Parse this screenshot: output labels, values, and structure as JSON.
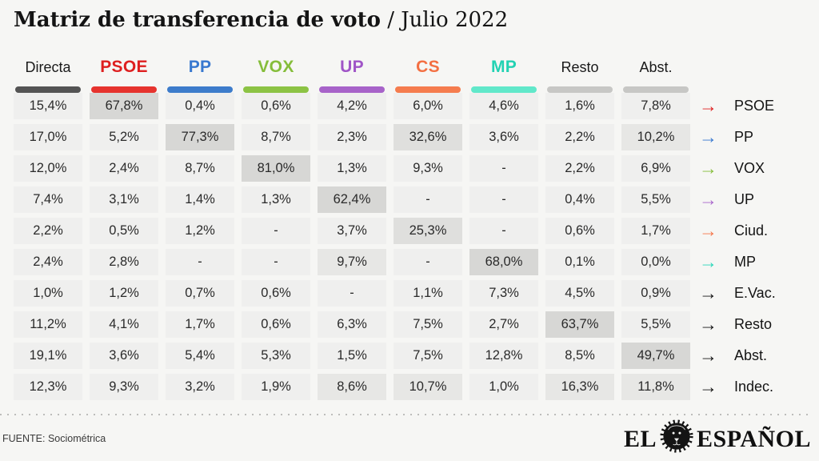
{
  "title": {
    "bold": "Matriz de transferencia de voto",
    "regular": " / Julio 2022"
  },
  "legend": {
    "arrow_glyph": "→"
  },
  "highlight_palette": {
    "0": "#efefee",
    "1": "#e7e7e5",
    "2": "#dfdfdd",
    "3": "#d7d7d5"
  },
  "chart_data": {
    "type": "table",
    "title": "Matriz de transferencia de voto / Julio 2022",
    "legend_position": "right",
    "note": "Vote transfer matrix; rows = current choice (right arrows), columns = party voted; values are percentages, dash = no data",
    "columns": [
      {
        "label": "Directa",
        "color": "#545454",
        "label_color": "#1a1a1a",
        "bold": false
      },
      {
        "label": "PSOE",
        "color": "#e6332e",
        "label_color": "#de1f1f",
        "bold": true
      },
      {
        "label": "PP",
        "color": "#3d7ccb",
        "label_color": "#3878cf",
        "bold": true
      },
      {
        "label": "VOX",
        "color": "#8cc344",
        "label_color": "#85bd3a",
        "bold": true
      },
      {
        "label": "UP",
        "color": "#a763c9",
        "label_color": "#a055c7",
        "bold": true
      },
      {
        "label": "CS",
        "color": "#f57c4e",
        "label_color": "#f36f42",
        "bold": true
      },
      {
        "label": "MP",
        "color": "#61e8ca",
        "label_color": "#22d2b3",
        "bold": true
      },
      {
        "label": "Resto",
        "color": "#c7c7c5",
        "label_color": "#1a1a1a",
        "bold": false
      },
      {
        "label": "Abst.",
        "color": "#c7c7c5",
        "label_color": "#1a1a1a",
        "bold": false
      }
    ],
    "rows": [
      {
        "label": "PSOE",
        "arrow_color": "#de1f1f",
        "cells": [
          {
            "t": "15,4%",
            "v": 15.4,
            "h": 0
          },
          {
            "t": "67,8%",
            "v": 67.8,
            "h": 3
          },
          {
            "t": "0,4%",
            "v": 0.4,
            "h": 0
          },
          {
            "t": "0,6%",
            "v": 0.6,
            "h": 0
          },
          {
            "t": "4,2%",
            "v": 4.2,
            "h": 0
          },
          {
            "t": "6,0%",
            "v": 6.0,
            "h": 0
          },
          {
            "t": "4,6%",
            "v": 4.6,
            "h": 0
          },
          {
            "t": "1,6%",
            "v": 1.6,
            "h": 0
          },
          {
            "t": "7,8%",
            "v": 7.8,
            "h": 0
          }
        ]
      },
      {
        "label": "PP",
        "arrow_color": "#3878cf",
        "cells": [
          {
            "t": "17,0%",
            "v": 17.0,
            "h": 0
          },
          {
            "t": "5,2%",
            "v": 5.2,
            "h": 0
          },
          {
            "t": "77,3%",
            "v": 77.3,
            "h": 3
          },
          {
            "t": "8,7%",
            "v": 8.7,
            "h": 0
          },
          {
            "t": "2,3%",
            "v": 2.3,
            "h": 0
          },
          {
            "t": "32,6%",
            "v": 32.6,
            "h": 2
          },
          {
            "t": "3,6%",
            "v": 3.6,
            "h": 0
          },
          {
            "t": "2,2%",
            "v": 2.2,
            "h": 0
          },
          {
            "t": "10,2%",
            "v": 10.2,
            "h": 1
          }
        ]
      },
      {
        "label": "VOX",
        "arrow_color": "#85bd3a",
        "cells": [
          {
            "t": "12,0%",
            "v": 12.0,
            "h": 0
          },
          {
            "t": "2,4%",
            "v": 2.4,
            "h": 0
          },
          {
            "t": "8,7%",
            "v": 8.7,
            "h": 0
          },
          {
            "t": "81,0%",
            "v": 81.0,
            "h": 3
          },
          {
            "t": "1,3%",
            "v": 1.3,
            "h": 0
          },
          {
            "t": "9,3%",
            "v": 9.3,
            "h": 0
          },
          {
            "t": "-",
            "v": null,
            "h": 0
          },
          {
            "t": "2,2%",
            "v": 2.2,
            "h": 0
          },
          {
            "t": "6,9%",
            "v": 6.9,
            "h": 0
          }
        ]
      },
      {
        "label": "UP",
        "arrow_color": "#a966cc",
        "cells": [
          {
            "t": "7,4%",
            "v": 7.4,
            "h": 0
          },
          {
            "t": "3,1%",
            "v": 3.1,
            "h": 0
          },
          {
            "t": "1,4%",
            "v": 1.4,
            "h": 0
          },
          {
            "t": "1,3%",
            "v": 1.3,
            "h": 0
          },
          {
            "t": "62,4%",
            "v": 62.4,
            "h": 3
          },
          {
            "t": "-",
            "v": null,
            "h": 0
          },
          {
            "t": "-",
            "v": null,
            "h": 0
          },
          {
            "t": "0,4%",
            "v": 0.4,
            "h": 0
          },
          {
            "t": "5,5%",
            "v": 5.5,
            "h": 0
          }
        ]
      },
      {
        "label": "Ciud.",
        "arrow_color": "#f5764a",
        "cells": [
          {
            "t": "2,2%",
            "v": 2.2,
            "h": 0
          },
          {
            "t": "0,5%",
            "v": 0.5,
            "h": 0
          },
          {
            "t": "1,2%",
            "v": 1.2,
            "h": 0
          },
          {
            "t": "-",
            "v": null,
            "h": 0
          },
          {
            "t": "3,7%",
            "v": 3.7,
            "h": 0
          },
          {
            "t": "25,3%",
            "v": 25.3,
            "h": 2
          },
          {
            "t": "-",
            "v": null,
            "h": 0
          },
          {
            "t": "0,6%",
            "v": 0.6,
            "h": 0
          },
          {
            "t": "1,7%",
            "v": 1.7,
            "h": 0
          }
        ]
      },
      {
        "label": "MP",
        "arrow_color": "#2bd7ba",
        "cells": [
          {
            "t": "2,4%",
            "v": 2.4,
            "h": 0
          },
          {
            "t": "2,8%",
            "v": 2.8,
            "h": 0
          },
          {
            "t": "-",
            "v": null,
            "h": 0
          },
          {
            "t": "-",
            "v": null,
            "h": 0
          },
          {
            "t": "9,7%",
            "v": 9.7,
            "h": 1
          },
          {
            "t": "-",
            "v": null,
            "h": 0
          },
          {
            "t": "68,0%",
            "v": 68.0,
            "h": 3
          },
          {
            "t": "0,1%",
            "v": 0.1,
            "h": 0
          },
          {
            "t": "0,0%",
            "v": 0.0,
            "h": 0
          }
        ]
      },
      {
        "label": "E.Vac.",
        "arrow_color": "#141414",
        "cells": [
          {
            "t": "1,0%",
            "v": 1.0,
            "h": 0
          },
          {
            "t": "1,2%",
            "v": 1.2,
            "h": 0
          },
          {
            "t": "0,7%",
            "v": 0.7,
            "h": 0
          },
          {
            "t": "0,6%",
            "v": 0.6,
            "h": 0
          },
          {
            "t": "-",
            "v": null,
            "h": 0
          },
          {
            "t": "1,1%",
            "v": 1.1,
            "h": 0
          },
          {
            "t": "7,3%",
            "v": 7.3,
            "h": 0
          },
          {
            "t": "4,5%",
            "v": 4.5,
            "h": 0
          },
          {
            "t": "0,9%",
            "v": 0.9,
            "h": 0
          }
        ]
      },
      {
        "label": "Resto",
        "arrow_color": "#141414",
        "cells": [
          {
            "t": "11,2%",
            "v": 11.2,
            "h": 0
          },
          {
            "t": "4,1%",
            "v": 4.1,
            "h": 0
          },
          {
            "t": "1,7%",
            "v": 1.7,
            "h": 0
          },
          {
            "t": "0,6%",
            "v": 0.6,
            "h": 0
          },
          {
            "t": "6,3%",
            "v": 6.3,
            "h": 0
          },
          {
            "t": "7,5%",
            "v": 7.5,
            "h": 0
          },
          {
            "t": "2,7%",
            "v": 2.7,
            "h": 0
          },
          {
            "t": "63,7%",
            "v": 63.7,
            "h": 3
          },
          {
            "t": "5,5%",
            "v": 5.5,
            "h": 0
          }
        ]
      },
      {
        "label": "Abst.",
        "arrow_color": "#141414",
        "cells": [
          {
            "t": "19,1%",
            "v": 19.1,
            "h": 0
          },
          {
            "t": "3,6%",
            "v": 3.6,
            "h": 0
          },
          {
            "t": "5,4%",
            "v": 5.4,
            "h": 0
          },
          {
            "t": "5,3%",
            "v": 5.3,
            "h": 0
          },
          {
            "t": "1,5%",
            "v": 1.5,
            "h": 0
          },
          {
            "t": "7,5%",
            "v": 7.5,
            "h": 0
          },
          {
            "t": "12,8%",
            "v": 12.8,
            "h": 0
          },
          {
            "t": "8,5%",
            "v": 8.5,
            "h": 0
          },
          {
            "t": "49,7%",
            "v": 49.7,
            "h": 3
          }
        ]
      },
      {
        "label": "Indec.",
        "arrow_color": "#141414",
        "cells": [
          {
            "t": "12,3%",
            "v": 12.3,
            "h": 0
          },
          {
            "t": "9,3%",
            "v": 9.3,
            "h": 0
          },
          {
            "t": "3,2%",
            "v": 3.2,
            "h": 0
          },
          {
            "t": "1,9%",
            "v": 1.9,
            "h": 0
          },
          {
            "t": "8,6%",
            "v": 8.6,
            "h": 1
          },
          {
            "t": "10,7%",
            "v": 10.7,
            "h": 1
          },
          {
            "t": "1,0%",
            "v": 1.0,
            "h": 0
          },
          {
            "t": "16,3%",
            "v": 16.3,
            "h": 1
          },
          {
            "t": "11,8%",
            "v": 11.8,
            "h": 1
          }
        ]
      }
    ]
  },
  "footer": {
    "source": "FUENTE: Sociométrica",
    "logo_left": "EL",
    "logo_right": "ESPAÑOL"
  }
}
